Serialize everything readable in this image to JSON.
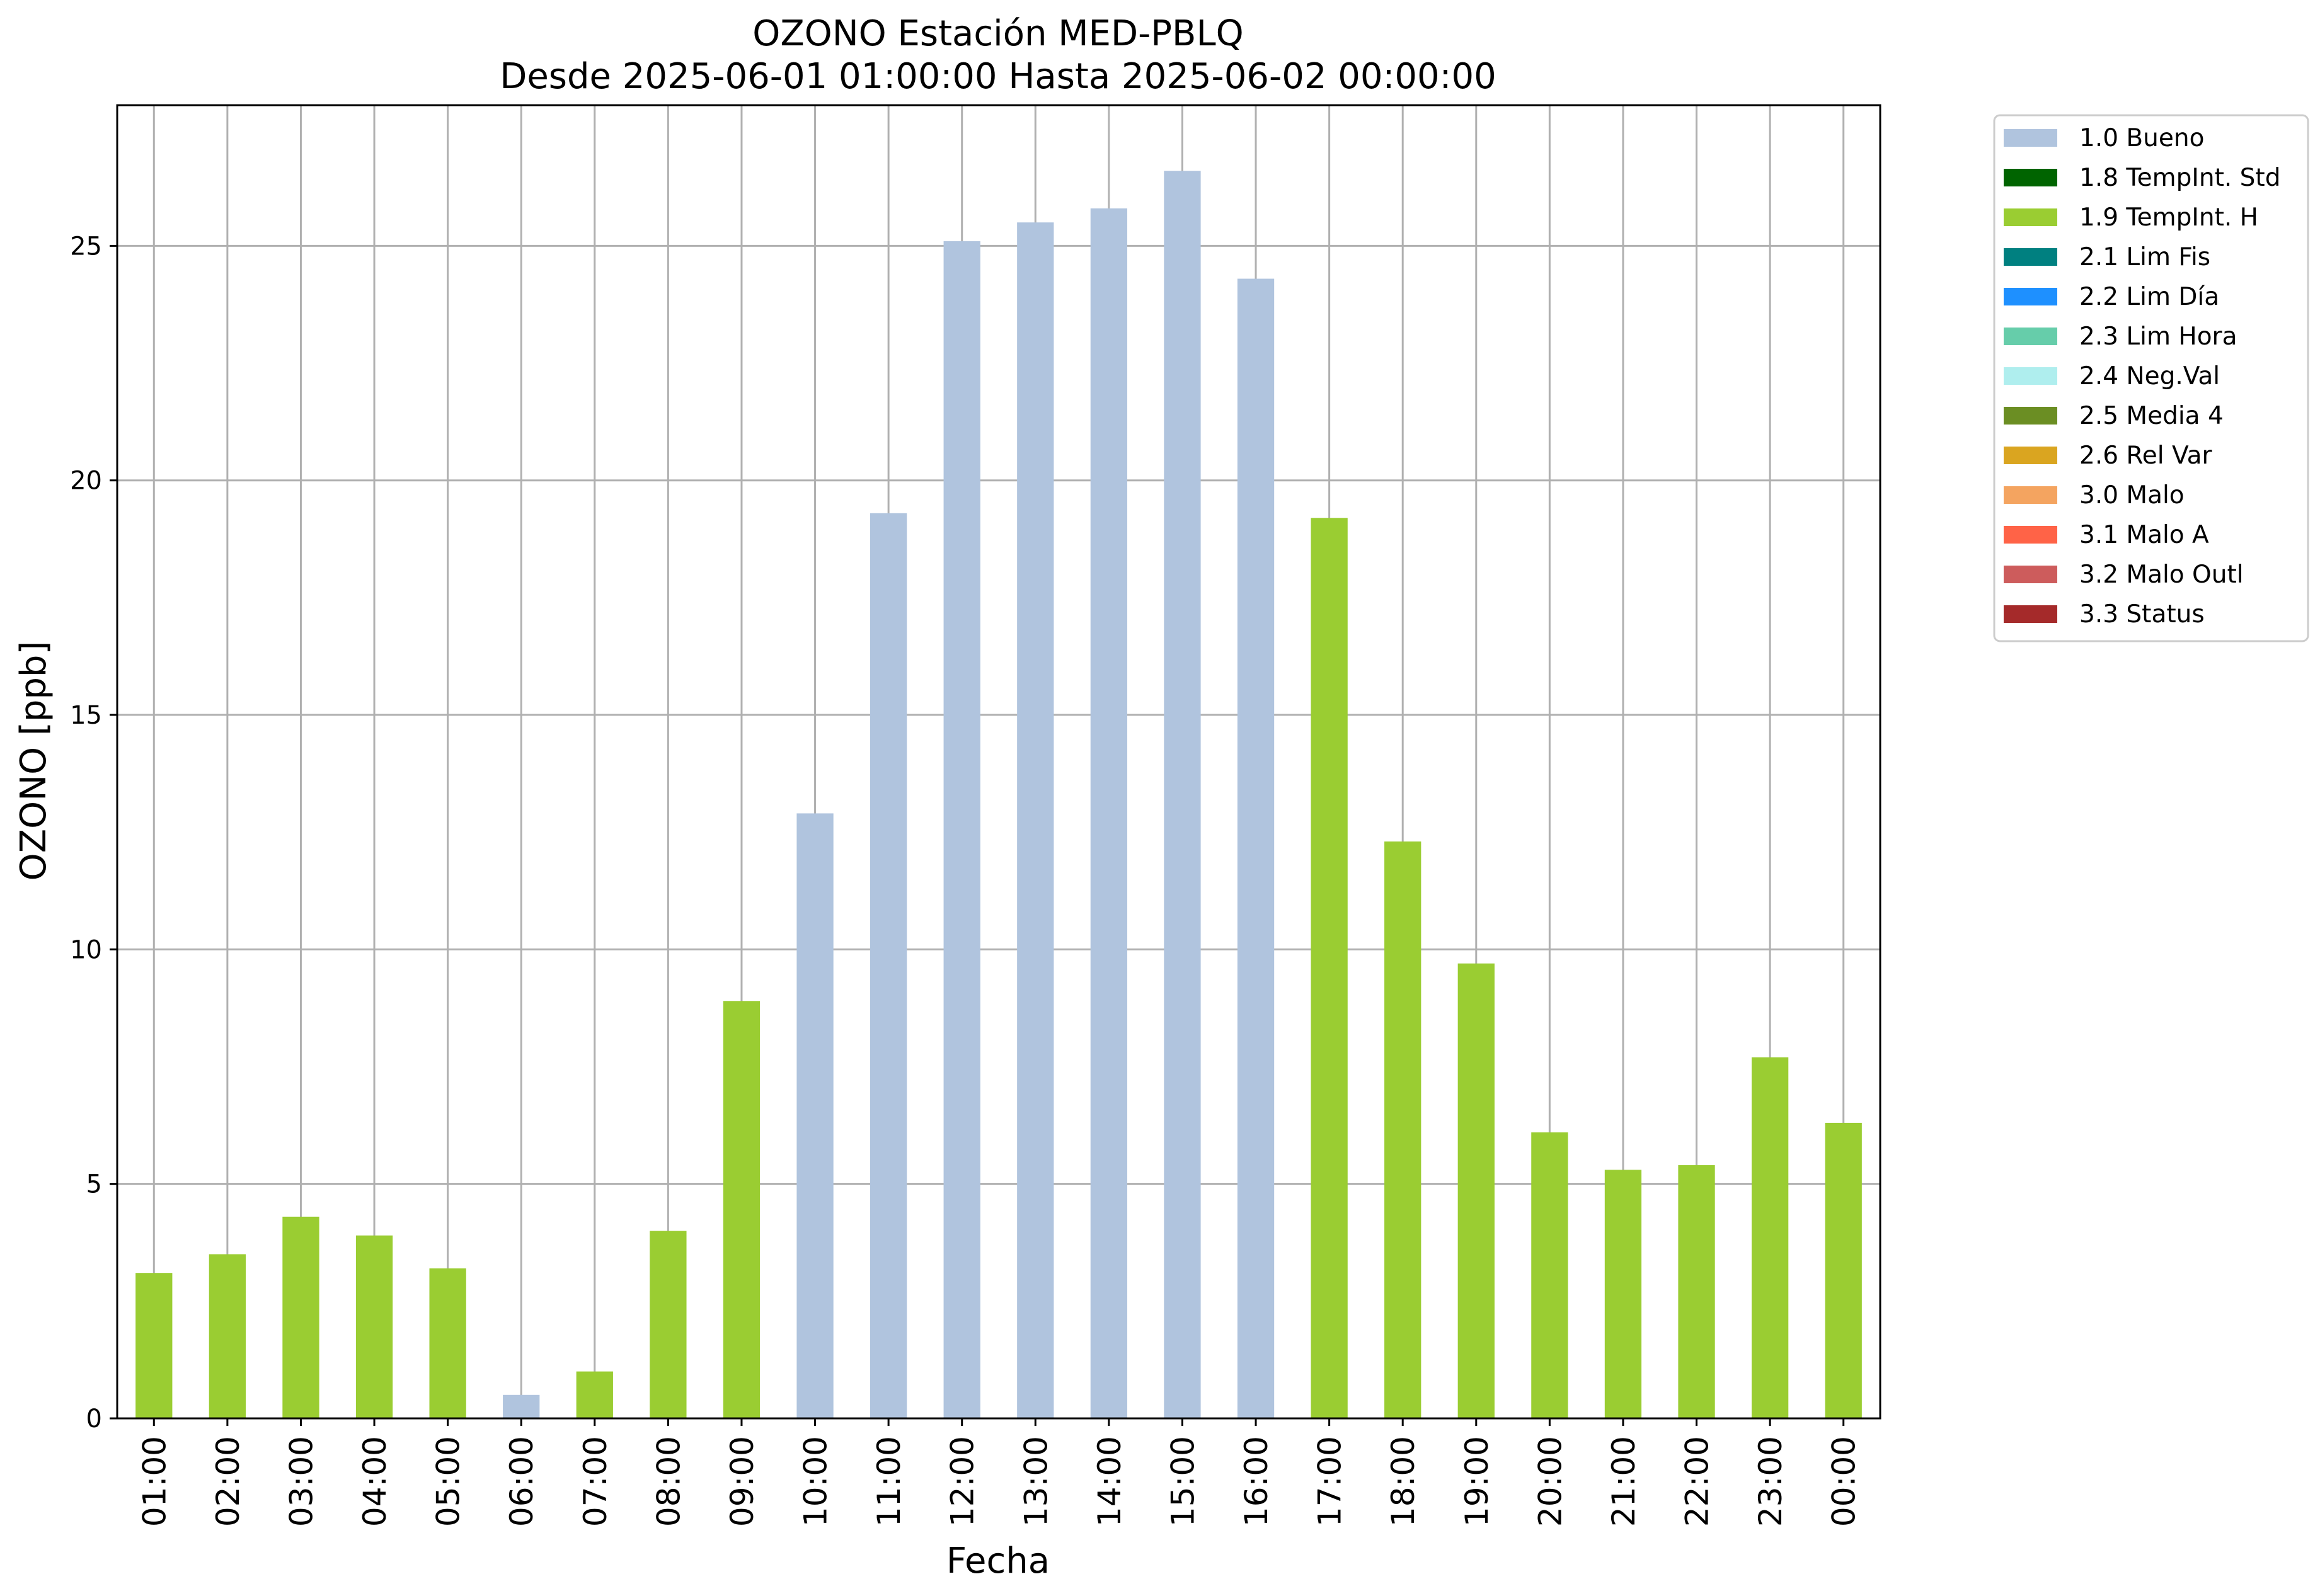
{
  "chart_data": {
    "type": "bar",
    "title_line1": "OZONO Estación MED-PBLQ",
    "title_line2": "Desde 2025-06-01 01:00:00 Hasta 2025-06-02 00:00:00",
    "xlabel": "Fecha",
    "ylabel": "OZONO [ppb]",
    "ylim": [
      0,
      28
    ],
    "yticks": [
      0,
      5,
      10,
      15,
      20,
      25
    ],
    "grid": true,
    "legend_position": "outside-top-right",
    "categories": [
      "01:00",
      "02:00",
      "03:00",
      "04:00",
      "05:00",
      "06:00",
      "07:00",
      "08:00",
      "09:00",
      "10:00",
      "11:00",
      "12:00",
      "13:00",
      "14:00",
      "15:00",
      "16:00",
      "17:00",
      "18:00",
      "19:00",
      "20:00",
      "21:00",
      "22:00",
      "23:00",
      "00:00"
    ],
    "values": [
      3.1,
      3.5,
      4.3,
      3.9,
      3.2,
      0.5,
      1.0,
      4.0,
      8.9,
      12.9,
      19.3,
      25.1,
      25.5,
      25.8,
      26.6,
      24.3,
      19.2,
      12.3,
      9.7,
      6.1,
      5.3,
      5.4,
      7.7,
      6.3
    ],
    "flags": [
      "1.9",
      "1.9",
      "1.9",
      "1.9",
      "1.9",
      "1.0",
      "1.9",
      "1.9",
      "1.9",
      "1.0",
      "1.0",
      "1.0",
      "1.0",
      "1.0",
      "1.0",
      "1.0",
      "1.9",
      "1.9",
      "1.9",
      "1.9",
      "1.9",
      "1.9",
      "1.9",
      "1.9"
    ],
    "legend": [
      {
        "code": "1.0",
        "label": "1.0 Bueno",
        "color": "#b0c4de"
      },
      {
        "code": "1.8",
        "label": "1.8 TempInt. Std",
        "color": "#006400"
      },
      {
        "code": "1.9",
        "label": "1.9 TempInt. H",
        "color": "#9acd32"
      },
      {
        "code": "2.1",
        "label": "2.1 Lim Fis",
        "color": "#008080"
      },
      {
        "code": "2.2",
        "label": "2.2 Lim Día",
        "color": "#1e90ff"
      },
      {
        "code": "2.3",
        "label": "2.3 Lim Hora",
        "color": "#66cdaa"
      },
      {
        "code": "2.4",
        "label": "2.4 Neg.Val",
        "color": "#afeeee"
      },
      {
        "code": "2.5",
        "label": "2.5 Media 4",
        "color": "#6b8e23"
      },
      {
        "code": "2.6",
        "label": "2.6 Rel Var",
        "color": "#daa520"
      },
      {
        "code": "3.0",
        "label": "3.0 Malo",
        "color": "#f4a460"
      },
      {
        "code": "3.1",
        "label": "3.1 Malo A",
        "color": "#ff6347"
      },
      {
        "code": "3.2",
        "label": "3.2 Malo Outl",
        "color": "#cd5c5c"
      },
      {
        "code": "3.3",
        "label": "3.3 Status",
        "color": "#a52a2a"
      }
    ]
  }
}
